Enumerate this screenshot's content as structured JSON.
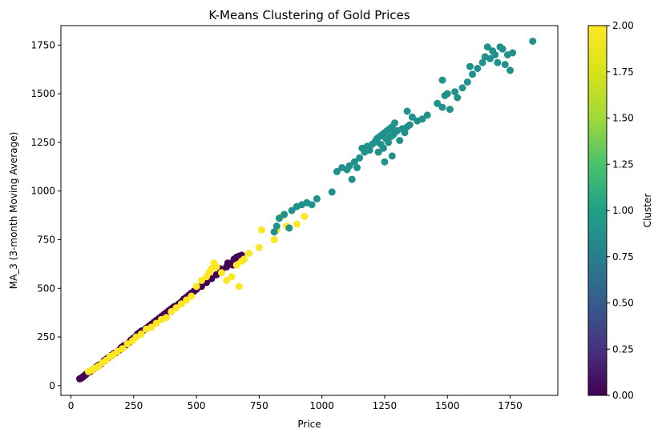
{
  "chart_data": {
    "type": "scatter",
    "title": "K-Means Clustering of Gold Prices",
    "xlabel": "Price",
    "ylabel": "MA_3 (3-month Moving Average)",
    "xlim": [
      -40,
      1940
    ],
    "ylim": [
      -50,
      1850
    ],
    "xticks": [
      0,
      250,
      500,
      750,
      1000,
      1250,
      1500,
      1750
    ],
    "yticks": [
      0,
      250,
      500,
      750,
      1000,
      1250,
      1500,
      1750
    ],
    "grid": false,
    "colormap": "viridis",
    "colorbar": {
      "label": "Cluster",
      "range": [
        0.0,
        2.0
      ],
      "ticks": [
        "0.00",
        "0.25",
        "0.50",
        "0.75",
        "1.00",
        "1.25",
        "1.50",
        "1.75",
        "2.00"
      ]
    },
    "series": [
      {
        "cluster": 0,
        "color": "#440154",
        "points": [
          [
            35,
            35
          ],
          [
            40,
            38
          ],
          [
            45,
            42
          ],
          [
            50,
            48
          ],
          [
            55,
            52
          ],
          [
            60,
            58
          ],
          [
            70,
            68
          ],
          [
            80,
            75
          ],
          [
            90,
            85
          ],
          [
            100,
            95
          ],
          [
            110,
            105
          ],
          [
            120,
            112
          ],
          [
            130,
            125
          ],
          [
            140,
            135
          ],
          [
            150,
            145
          ],
          [
            160,
            155
          ],
          [
            170,
            165
          ],
          [
            180,
            170
          ],
          [
            190,
            180
          ],
          [
            200,
            195
          ],
          [
            210,
            205
          ],
          [
            220,
            210
          ],
          [
            230,
            220
          ],
          [
            240,
            235
          ],
          [
            250,
            245
          ],
          [
            260,
            255
          ],
          [
            265,
            265
          ],
          [
            270,
            270
          ],
          [
            280,
            280
          ],
          [
            290,
            285
          ],
          [
            300,
            295
          ],
          [
            310,
            305
          ],
          [
            320,
            315
          ],
          [
            330,
            325
          ],
          [
            340,
            335
          ],
          [
            350,
            345
          ],
          [
            360,
            355
          ],
          [
            370,
            365
          ],
          [
            380,
            375
          ],
          [
            390,
            385
          ],
          [
            400,
            395
          ],
          [
            410,
            405
          ],
          [
            420,
            410
          ],
          [
            430,
            420
          ],
          [
            440,
            430
          ],
          [
            450,
            445
          ],
          [
            460,
            455
          ],
          [
            470,
            465
          ],
          [
            480,
            475
          ],
          [
            490,
            485
          ],
          [
            500,
            495
          ],
          [
            520,
            510
          ],
          [
            540,
            530
          ],
          [
            560,
            550
          ],
          [
            580,
            570
          ],
          [
            600,
            590
          ],
          [
            620,
            610
          ],
          [
            640,
            630
          ],
          [
            650,
            650
          ],
          [
            660,
            660
          ],
          [
            670,
            665
          ],
          [
            680,
            670
          ],
          [
            645,
            620
          ],
          [
            625,
            630
          ],
          [
            595,
            600
          ]
        ]
      },
      {
        "cluster": 1,
        "color": "#21918c",
        "points": [
          [
            810,
            790
          ],
          [
            820,
            820
          ],
          [
            830,
            860
          ],
          [
            850,
            880
          ],
          [
            870,
            810
          ],
          [
            880,
            900
          ],
          [
            900,
            920
          ],
          [
            920,
            930
          ],
          [
            940,
            940
          ],
          [
            960,
            930
          ],
          [
            980,
            960
          ],
          [
            1040,
            995
          ],
          [
            1060,
            1100
          ],
          [
            1080,
            1120
          ],
          [
            1100,
            1110
          ],
          [
            1110,
            1130
          ],
          [
            1120,
            1060
          ],
          [
            1130,
            1150
          ],
          [
            1140,
            1120
          ],
          [
            1150,
            1170
          ],
          [
            1160,
            1220
          ],
          [
            1170,
            1200
          ],
          [
            1180,
            1230
          ],
          [
            1190,
            1210
          ],
          [
            1200,
            1240
          ],
          [
            1210,
            1250
          ],
          [
            1215,
            1260
          ],
          [
            1220,
            1270
          ],
          [
            1225,
            1200
          ],
          [
            1230,
            1280
          ],
          [
            1235,
            1240
          ],
          [
            1240,
            1290
          ],
          [
            1245,
            1220
          ],
          [
            1250,
            1300
          ],
          [
            1255,
            1270
          ],
          [
            1260,
            1310
          ],
          [
            1265,
            1250
          ],
          [
            1270,
            1320
          ],
          [
            1275,
            1280
          ],
          [
            1280,
            1330
          ],
          [
            1285,
            1290
          ],
          [
            1290,
            1300
          ],
          [
            1300,
            1310
          ],
          [
            1310,
            1260
          ],
          [
            1320,
            1320
          ],
          [
            1330,
            1300
          ],
          [
            1340,
            1330
          ],
          [
            1350,
            1340
          ],
          [
            1360,
            1380
          ],
          [
            1380,
            1360
          ],
          [
            1400,
            1370
          ],
          [
            1420,
            1390
          ],
          [
            1460,
            1450
          ],
          [
            1480,
            1430
          ],
          [
            1490,
            1490
          ],
          [
            1500,
            1500
          ],
          [
            1510,
            1420
          ],
          [
            1530,
            1510
          ],
          [
            1540,
            1480
          ],
          [
            1560,
            1530
          ],
          [
            1580,
            1560
          ],
          [
            1590,
            1640
          ],
          [
            1600,
            1600
          ],
          [
            1620,
            1630
          ],
          [
            1640,
            1660
          ],
          [
            1650,
            1690
          ],
          [
            1660,
            1740
          ],
          [
            1670,
            1680
          ],
          [
            1680,
            1720
          ],
          [
            1690,
            1700
          ],
          [
            1700,
            1660
          ],
          [
            1710,
            1740
          ],
          [
            1720,
            1730
          ],
          [
            1730,
            1650
          ],
          [
            1740,
            1700
          ],
          [
            1750,
            1620
          ],
          [
            1760,
            1710
          ],
          [
            1840,
            1770
          ],
          [
            1480,
            1570
          ],
          [
            1340,
            1410
          ],
          [
            1290,
            1350
          ],
          [
            1250,
            1150
          ],
          [
            1280,
            1180
          ]
        ]
      },
      {
        "cluster": 2,
        "color": "#fde725",
        "points": [
          [
            70,
            72
          ],
          [
            85,
            80
          ],
          [
            95,
            90
          ],
          [
            110,
            100
          ],
          [
            125,
            118
          ],
          [
            140,
            130
          ],
          [
            155,
            150
          ],
          [
            170,
            160
          ],
          [
            185,
            175
          ],
          [
            205,
            190
          ],
          [
            225,
            215
          ],
          [
            245,
            230
          ],
          [
            260,
            250
          ],
          [
            280,
            265
          ],
          [
            300,
            290
          ],
          [
            320,
            300
          ],
          [
            340,
            320
          ],
          [
            360,
            340
          ],
          [
            380,
            350
          ],
          [
            400,
            380
          ],
          [
            420,
            400
          ],
          [
            440,
            420
          ],
          [
            460,
            440
          ],
          [
            480,
            460
          ],
          [
            500,
            510
          ],
          [
            520,
            540
          ],
          [
            540,
            560
          ],
          [
            550,
            580
          ],
          [
            560,
            600
          ],
          [
            570,
            630
          ],
          [
            580,
            610
          ],
          [
            600,
            580
          ],
          [
            620,
            540
          ],
          [
            640,
            560
          ],
          [
            660,
            620
          ],
          [
            670,
            510
          ],
          [
            680,
            640
          ],
          [
            690,
            650
          ],
          [
            710,
            680
          ],
          [
            750,
            710
          ],
          [
            760,
            800
          ],
          [
            810,
            750
          ],
          [
            820,
            800
          ],
          [
            840,
            870
          ],
          [
            860,
            820
          ],
          [
            900,
            830
          ],
          [
            930,
            870
          ]
        ]
      }
    ]
  }
}
